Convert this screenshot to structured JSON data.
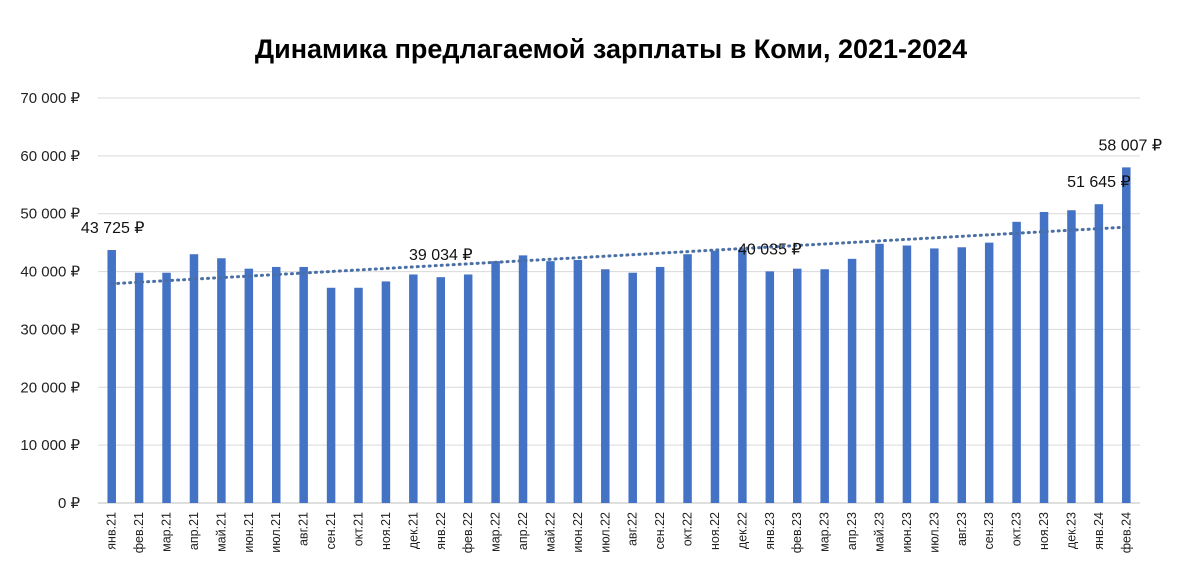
{
  "chart_data": {
    "type": "bar",
    "title": "Динамика предлагаемой зарплаты в Коми, 2021-2024",
    "xlabel": "",
    "ylabel": "",
    "ylim": [
      0,
      70000
    ],
    "y_ticks": [
      0,
      10000,
      20000,
      30000,
      40000,
      50000,
      60000,
      70000
    ],
    "y_tick_labels": [
      "0 ₽",
      "10 000 ₽",
      "20 000 ₽",
      "30 000 ₽",
      "40 000 ₽",
      "50 000 ₽",
      "60 000 ₽",
      "70 000 ₽"
    ],
    "grid": true,
    "trendline": "linear",
    "colors": {
      "bar": "#4472C4",
      "trend": "#4A6FA5",
      "grid": "#d9d9d9"
    },
    "categories": [
      "янв.21",
      "фев.21",
      "мар.21",
      "апр.21",
      "май.21",
      "июн.21",
      "июл.21",
      "авг.21",
      "сен.21",
      "окт.21",
      "ноя.21",
      "дек.21",
      "янв.22",
      "фев.22",
      "мар.22",
      "апр.22",
      "май.22",
      "июн.22",
      "июл.22",
      "авг.22",
      "сен.22",
      "окт.22",
      "ноя.22",
      "дек.22",
      "янв.23",
      "фев.23",
      "мар.23",
      "апр.23",
      "май.23",
      "июн.23",
      "июл.23",
      "авг.23",
      "сен.23",
      "окт.23",
      "ноя.23",
      "дек.23",
      "янв.24",
      "фев.24"
    ],
    "values": [
      43725,
      39800,
      39800,
      43000,
      42300,
      40500,
      40800,
      40800,
      37200,
      37200,
      38300,
      39500,
      39034,
      39500,
      41800,
      42800,
      41800,
      42000,
      40400,
      39800,
      40800,
      43000,
      43600,
      43800,
      40035,
      40500,
      40400,
      42200,
      44800,
      44500,
      44000,
      44200,
      45000,
      48600,
      50300,
      50600,
      51645,
      58007
    ],
    "data_labels": [
      {
        "index": 0,
        "text": "43 725 ₽"
      },
      {
        "index": 12,
        "text": "39 034 ₽"
      },
      {
        "index": 24,
        "text": "40 035 ₽"
      },
      {
        "index": 36,
        "text": "51 645 ₽"
      },
      {
        "index": 37,
        "text": "58 007 ₽"
      }
    ]
  }
}
